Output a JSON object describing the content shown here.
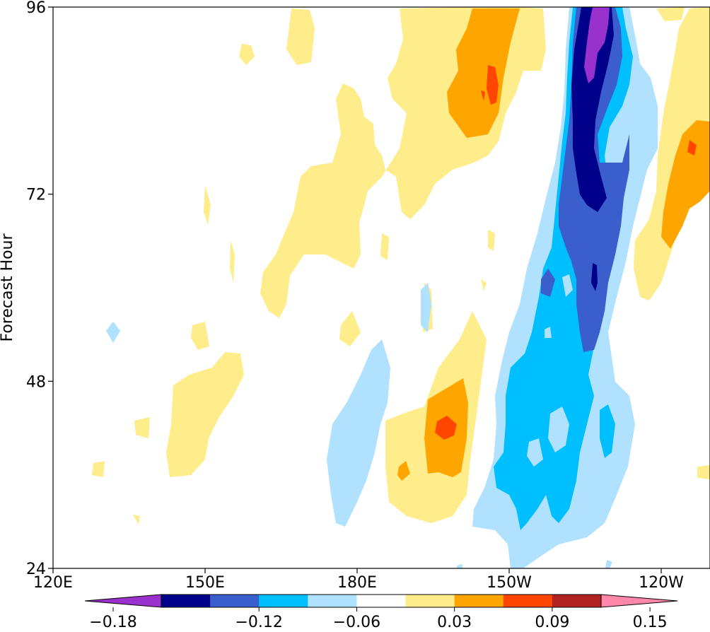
{
  "chart_data": {
    "type": "heatmap",
    "subtype": "filled-contour (Hovmoller)",
    "title": "",
    "xlabel": "",
    "ylabel": "Forecast Hour",
    "x_ticks": [
      "120E",
      "150E",
      "180E",
      "150W",
      "120W"
    ],
    "y_ticks": [
      "24",
      "48",
      "72",
      "96"
    ],
    "ylim": [
      24,
      96
    ],
    "grid": false,
    "colorbar": {
      "orientation": "horizontal",
      "placement": "bottom",
      "extend": "both",
      "levels": [
        -0.18,
        -0.15,
        -0.12,
        -0.09,
        -0.06,
        -0.03,
        0.03,
        0.06,
        0.09,
        0.12,
        0.15,
        0.18
      ],
      "tick_labels": [
        "−0.18",
        "−0.12",
        "−0.06",
        "0.03",
        "0.09",
        "0.15"
      ],
      "colors": [
        "#9932cc",
        "#00008b",
        "#3a5fcd",
        "#00bfff",
        "#b0e2ff",
        "#ffffff",
        "#ffec8b",
        "#ffa500",
        "#ff4500",
        "#b22222",
        "#ff88aa"
      ]
    }
  }
}
